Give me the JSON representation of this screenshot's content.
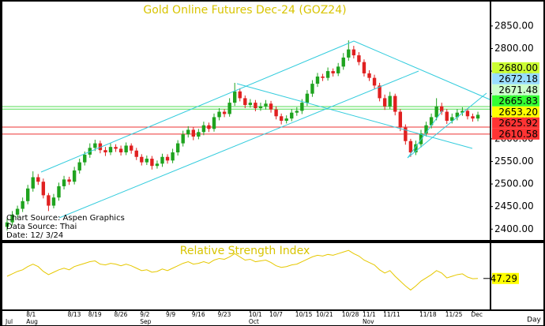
{
  "chart_data": [
    {
      "type": "candlestick",
      "title": "Gold Online Futures Dec-24 (GOZ24)",
      "categories": [
        null,
        null,
        null,
        null,
        "8/1",
        null,
        null,
        null,
        null,
        null,
        null,
        null,
        "8/13",
        null,
        null,
        null,
        "8/19",
        null,
        null,
        null,
        null,
        "8/26",
        null,
        null,
        null,
        null,
        "9/2",
        null,
        null,
        null,
        null,
        "9/9",
        null,
        null,
        null,
        null,
        "9/16",
        null,
        null,
        null,
        null,
        "9/23",
        null,
        null,
        null,
        null,
        null,
        "10/1",
        null,
        null,
        null,
        "10/7",
        null,
        null,
        null,
        null,
        "10/15",
        null,
        null,
        null,
        "10/21",
        null,
        null,
        null,
        null,
        "10/28",
        null,
        null,
        null,
        "11/1",
        null,
        null,
        null,
        "11/11",
        null,
        null,
        null,
        null,
        null,
        null,
        "11/18",
        null,
        null,
        null,
        null,
        "11/25",
        null,
        null,
        null,
        null,
        "Dec",
        null
      ],
      "months": [
        "Jul",
        null,
        null,
        null,
        "Aug",
        null,
        null,
        null,
        null,
        null,
        null,
        null,
        null,
        null,
        null,
        null,
        null,
        null,
        null,
        null,
        null,
        null,
        null,
        null,
        null,
        null,
        "Sep",
        null,
        null,
        null,
        null,
        null,
        null,
        null,
        null,
        null,
        null,
        null,
        null,
        null,
        null,
        null,
        null,
        null,
        null,
        null,
        null,
        "Oct",
        null,
        null,
        null,
        null,
        null,
        null,
        null,
        null,
        null,
        null,
        null,
        null,
        null,
        null,
        null,
        null,
        null,
        null,
        null,
        null,
        null,
        "Nov",
        null,
        null,
        null,
        null,
        null,
        null,
        null,
        null,
        null,
        null,
        null,
        null,
        null,
        null,
        null,
        null,
        null,
        null,
        null,
        null,
        null,
        null
      ],
      "open": [
        2405,
        2415,
        2432,
        2445,
        2462,
        2490,
        2515,
        2505,
        2475,
        2452,
        2470,
        2495,
        2510,
        2505,
        2530,
        2548,
        2565,
        2580,
        2590,
        2575,
        2570,
        2582,
        2578,
        2570,
        2585,
        2574,
        2560,
        2548,
        2556,
        2540,
        2545,
        2560,
        2552,
        2570,
        2590,
        2610,
        2620,
        2605,
        2615,
        2630,
        2622,
        2648,
        2660,
        2655,
        2680,
        2705,
        2690,
        2675,
        2680,
        2668,
        2672,
        2678,
        2665,
        2650,
        2640,
        2645,
        2658,
        2662,
        2680,
        2700,
        2722,
        2738,
        2735,
        2750,
        2745,
        2760,
        2780,
        2798,
        2785,
        2770,
        2745,
        2735,
        2718,
        2690,
        2672,
        2695,
        2660,
        2625,
        2595,
        2570,
        2588,
        2612,
        2630,
        2648,
        2672,
        2660,
        2640,
        2648,
        2658,
        2662,
        2650,
        2645
      ],
      "high": [
        2423,
        2440,
        2452,
        2470,
        2498,
        2528,
        2522,
        2512,
        2480,
        2478,
        2503,
        2518,
        2516,
        2538,
        2556,
        2572,
        2590,
        2598,
        2596,
        2582,
        2590,
        2588,
        2585,
        2592,
        2590,
        2580,
        2566,
        2563,
        2562,
        2552,
        2567,
        2566,
        2578,
        2597,
        2618,
        2628,
        2626,
        2622,
        2638,
        2636,
        2656,
        2668,
        2666,
        2690,
        2724,
        2712,
        2696,
        2688,
        2686,
        2680,
        2686,
        2684,
        2672,
        2656,
        2652,
        2666,
        2670,
        2688,
        2708,
        2730,
        2746,
        2744,
        2758,
        2756,
        2768,
        2790,
        2818,
        2806,
        2792,
        2776,
        2752,
        2742,
        2724,
        2698,
        2704,
        2700,
        2666,
        2632,
        2600,
        2596,
        2620,
        2638,
        2656,
        2690,
        2680,
        2666,
        2656,
        2666,
        2670,
        2668,
        2656,
        2660
      ],
      "low": [
        2397,
        2408,
        2425,
        2438,
        2455,
        2483,
        2498,
        2468,
        2440,
        2446,
        2463,
        2488,
        2498,
        2499,
        2523,
        2541,
        2558,
        2573,
        2568,
        2562,
        2564,
        2571,
        2563,
        2564,
        2567,
        2553,
        2541,
        2542,
        2532,
        2534,
        2538,
        2545,
        2546,
        2563,
        2583,
        2603,
        2597,
        2599,
        2608,
        2615,
        2616,
        2641,
        2648,
        2649,
        2673,
        2683,
        2668,
        2669,
        2661,
        2662,
        2665,
        2658,
        2643,
        2632,
        2634,
        2639,
        2651,
        2655,
        2673,
        2693,
        2715,
        2728,
        2729,
        2738,
        2739,
        2753,
        2773,
        2778,
        2763,
        2738,
        2728,
        2711,
        2683,
        2664,
        2666,
        2652,
        2617,
        2587,
        2560,
        2564,
        2581,
        2605,
        2623,
        2641,
        2653,
        2633,
        2634,
        2641,
        2651,
        2643,
        2638,
        2639
      ],
      "close": [
        2415,
        2432,
        2445,
        2462,
        2490,
        2515,
        2505,
        2475,
        2452,
        2470,
        2495,
        2510,
        2505,
        2530,
        2548,
        2565,
        2580,
        2590,
        2575,
        2570,
        2582,
        2578,
        2570,
        2585,
        2574,
        2560,
        2548,
        2556,
        2540,
        2545,
        2560,
        2552,
        2570,
        2590,
        2610,
        2620,
        2605,
        2615,
        2630,
        2622,
        2648,
        2660,
        2655,
        2680,
        2705,
        2690,
        2675,
        2680,
        2668,
        2672,
        2678,
        2665,
        2650,
        2640,
        2645,
        2658,
        2662,
        2680,
        2700,
        2722,
        2738,
        2735,
        2750,
        2745,
        2760,
        2780,
        2798,
        2785,
        2770,
        2745,
        2735,
        2718,
        2690,
        2672,
        2695,
        2660,
        2625,
        2595,
        2570,
        2588,
        2612,
        2630,
        2648,
        2672,
        2660,
        2640,
        2648,
        2658,
        2662,
        2650,
        2645,
        2653.2
      ],
      "up_color": "#1fa31f",
      "down_color": "#e02020",
      "ylim": [
        2376,
        2904
      ],
      "yticks": [
        {
          "value": 2400,
          "label": "2400.00"
        },
        {
          "value": 2450,
          "label": "2450.00"
        },
        {
          "value": 2500,
          "label": "2500.00"
        },
        {
          "value": 2550,
          "label": "2550.00"
        },
        {
          "value": 2600,
          "label": "2600.00"
        },
        {
          "value": 2650,
          "label": "2650.00"
        },
        {
          "value": 2700,
          "label": "2700.00"
        },
        {
          "value": 2750,
          "label": "2750.00"
        },
        {
          "value": 2800,
          "label": "2800.00"
        },
        {
          "value": 2850,
          "label": "2850.00"
        }
      ],
      "levels": [
        {
          "value": 2680,
          "label": "2680.00",
          "color": "#ccff33"
        },
        {
          "value": 2672.18,
          "label": "2672.18",
          "color": "#99ddff"
        },
        {
          "value": 2671.48,
          "label": "2671.48",
          "color": "#ccffcc",
          "line": "#55dd55"
        },
        {
          "value": 2665.83,
          "label": "2665.83",
          "color": "#33ff33",
          "line": "#55dd55"
        },
        {
          "value": 2653.2,
          "label": "2653.20",
          "color": "#ffff00"
        },
        {
          "value": 2625.92,
          "label": "2625.92",
          "color": "#ff3333",
          "line": "#ee3333"
        },
        {
          "value": 2610.58,
          "label": "2610.58",
          "color": "#ff3333",
          "line": "#ee3333"
        }
      ],
      "annotations": [
        "Chart Source: Aspen Graphics",
        "Data Source: Thai",
        "Date: 12/ 3/24"
      ]
    },
    {
      "type": "line",
      "title": "Relative Strength Index",
      "color": "#e6c800",
      "values": [
        50,
        53,
        56,
        58,
        62,
        65,
        62,
        56,
        52,
        55,
        58,
        60,
        58,
        62,
        64,
        66,
        68,
        69,
        65,
        64,
        66,
        65,
        63,
        65,
        63,
        60,
        57,
        58,
        55,
        56,
        59,
        57,
        60,
        63,
        66,
        68,
        65,
        66,
        68,
        66,
        70,
        72,
        71,
        74,
        78,
        74,
        70,
        71,
        68,
        69,
        70,
        67,
        63,
        61,
        62,
        64,
        65,
        68,
        71,
        74,
        76,
        75,
        77,
        76,
        78,
        80,
        82,
        78,
        75,
        70,
        67,
        64,
        58,
        54,
        57,
        50,
        44,
        38,
        33,
        38,
        44,
        48,
        52,
        57,
        54,
        48,
        50,
        52,
        53,
        49,
        47,
        47.29
      ],
      "ylim": [
        10,
        90
      ],
      "label_color": "#ffff00",
      "x_label": "Day"
    }
  ]
}
